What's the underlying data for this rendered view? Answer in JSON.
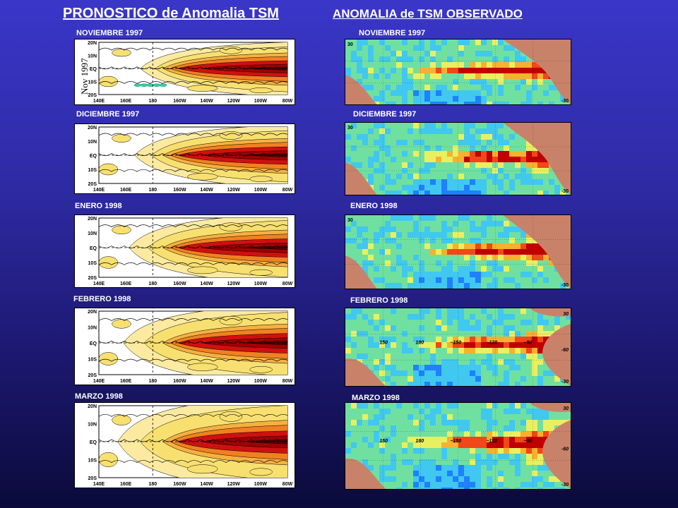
{
  "titles": {
    "forecast": "PRONOSTICO de Anomalia TSM",
    "observed": "ANOMALIA de TSM OBSERVADO"
  },
  "forecast_panels": [
    {
      "label": "NOVIEMBRE 1997",
      "inset": "Nov 1997",
      "lat_labels": [
        "20N",
        "10N",
        "EQ",
        "10S",
        "20S"
      ],
      "lon_labels": [
        "140E",
        "160E",
        "180",
        "160W",
        "140W",
        "120W",
        "100W",
        "80W"
      ]
    },
    {
      "label": "DICIEMBRE 1997",
      "lat_labels": [
        "20N",
        "10N",
        "EQ",
        "10S",
        "20S"
      ],
      "lon_labels": [
        "140E",
        "160E",
        "180",
        "160W",
        "140W",
        "120W",
        "100W",
        "80W"
      ]
    },
    {
      "label": "ENERO 1998",
      "lat_labels": [
        "20N",
        "10N",
        "EQ",
        "10S",
        "20S"
      ],
      "lon_labels": [
        "140E",
        "160E",
        "180",
        "160W",
        "140W",
        "120W",
        "100W",
        "80W"
      ]
    },
    {
      "label": "FEBRERO 1998",
      "lat_labels": [
        "20N",
        "10N",
        "EQ",
        "10S",
        "20S"
      ],
      "lon_labels": [
        "140E",
        "160E",
        "180",
        "160W",
        "140W",
        "120W",
        "100W",
        "80W"
      ]
    },
    {
      "label": "MARZO 1998",
      "lat_labels": [
        "20N",
        "10N",
        "EQ",
        "10S",
        "20S"
      ],
      "lon_labels": [
        "140E",
        "160E",
        "180",
        "160W",
        "140W",
        "120W",
        "100W",
        "80W"
      ]
    }
  ],
  "observed_panels": [
    {
      "label": "NOVIEMBRE 1997",
      "edge_labels": [
        "30",
        "-30"
      ]
    },
    {
      "label": "DICIEMBRE 1997",
      "edge_labels": [
        "30",
        "-30"
      ]
    },
    {
      "label": "ENERO 1998",
      "edge_labels": [
        "30",
        "-30"
      ]
    },
    {
      "label": "FEBRERO 1998",
      "lon_labels": [
        "150",
        "180",
        "−150",
        "−120",
        "−90"
      ],
      "edge_labels": [
        "30",
        "-60",
        "-30"
      ]
    },
    {
      "label": "MARZO 1998",
      "lon_labels": [
        "150",
        "180",
        "−150",
        "−120",
        "−90"
      ],
      "edge_labels": [
        "30",
        "-60",
        "-30"
      ]
    }
  ],
  "colors": {
    "warm_dark": "#5a0000",
    "warm_red": "#d01010",
    "warm_orange": "#f08020",
    "warm_yellow": "#f8e070",
    "cool_blue": "#2060e0",
    "land": "#c8826a"
  }
}
